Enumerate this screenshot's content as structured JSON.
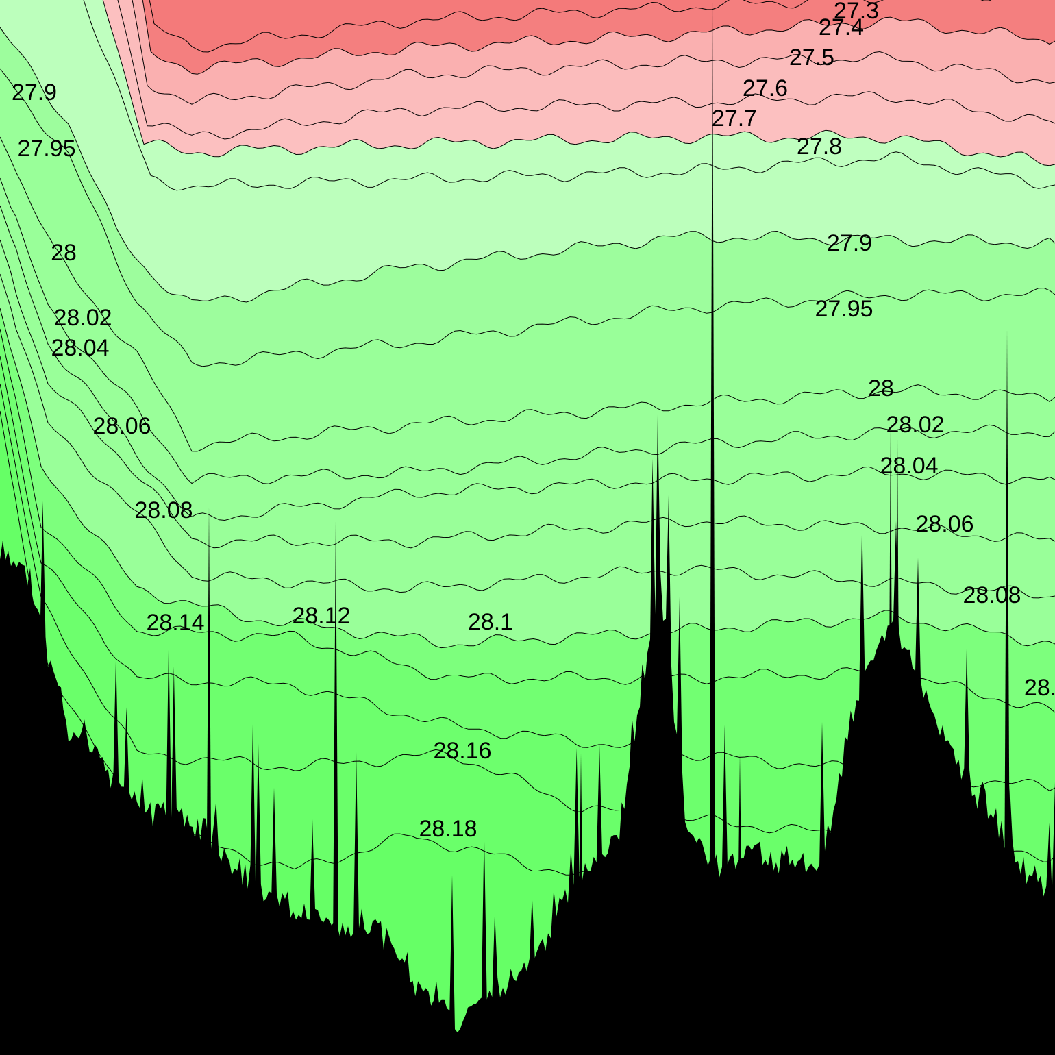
{
  "chart_data": {
    "type": "contour",
    "levels": [
      27.3,
      27.4,
      27.5,
      27.6,
      27.7,
      27.8,
      27.9,
      27.95,
      28,
      28.02,
      28.04,
      28.06,
      28.08,
      28.1,
      28.12,
      28.14,
      28.16,
      28.18
    ],
    "colors": [
      "#f47a7a",
      "#f47f7f",
      "#fab0b0",
      "#fbbcbc",
      "#fcc0c0",
      "#bfffbf",
      "#bcffbc",
      "#9dfd9d",
      "#99ff99",
      "#99ff99",
      "#99ff99",
      "#99ff99",
      "#99ff99",
      "#99ff99",
      "#7dff7d",
      "#72ff72",
      "#6dff6d",
      "#6aff6a",
      "#66ff66"
    ]
  }
}
